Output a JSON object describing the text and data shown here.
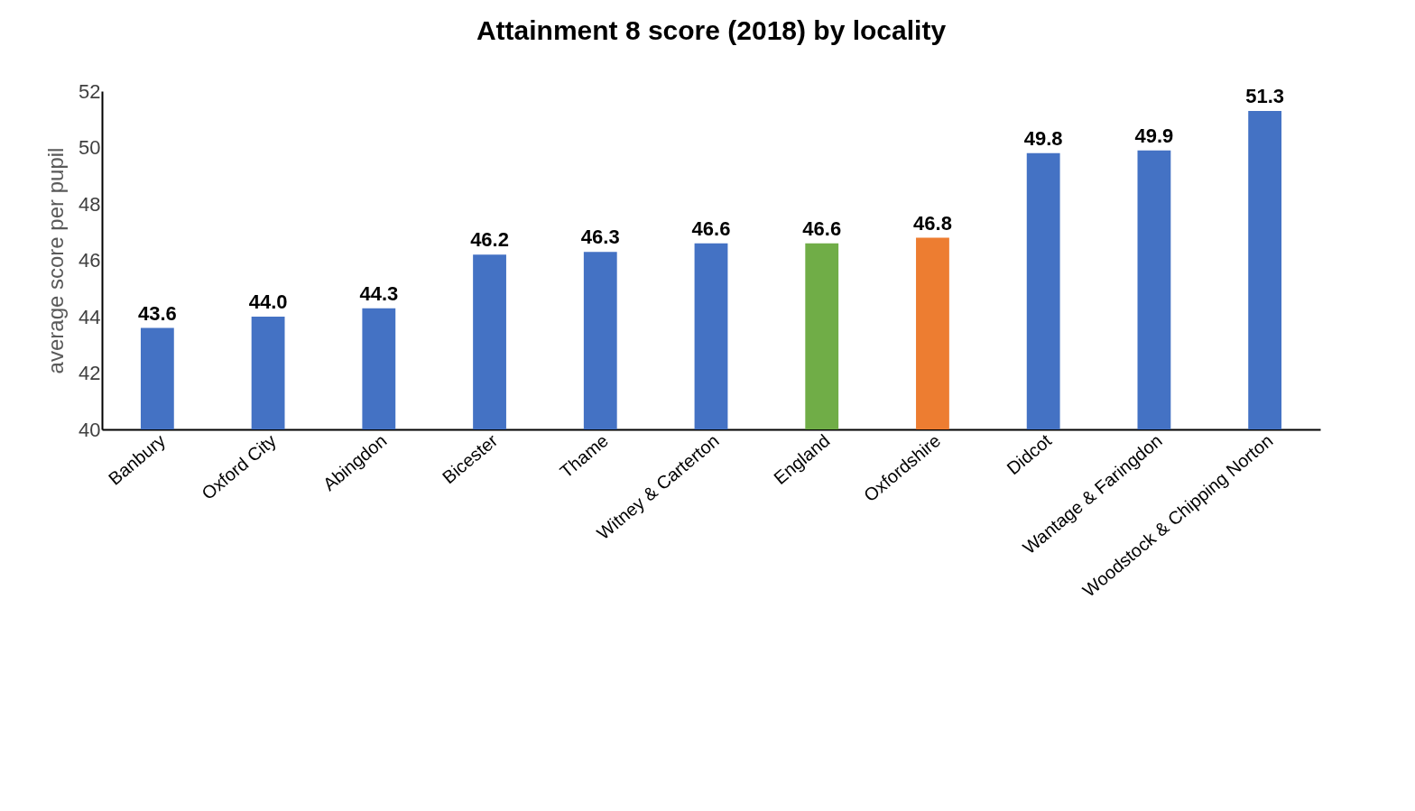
{
  "chart_data": {
    "type": "bar",
    "title": "Attainment 8 score (2018) by locality",
    "ylabel": "average score per pupil",
    "categories": [
      "Banbury",
      "Oxford City",
      "Abingdon",
      "Bicester",
      "Thame",
      "Witney & Carterton",
      "England",
      "Oxfordshire",
      "Didcot",
      "Wantage & Faringdon",
      "Woodstock & Chipping Norton"
    ],
    "values": [
      43.6,
      44.0,
      44.3,
      46.2,
      46.3,
      46.6,
      46.6,
      46.8,
      49.8,
      49.9,
      51.3
    ],
    "colors": [
      "#4472c4",
      "#4472c4",
      "#4472c4",
      "#4472c4",
      "#4472c4",
      "#4472c4",
      "#70ad47",
      "#ed7d31",
      "#4472c4",
      "#4472c4",
      "#4472c4"
    ],
    "value_labels": [
      "43.6",
      "44.0",
      "44.3",
      "46.2",
      "46.3",
      "46.6",
      "46.6",
      "46.8",
      "49.8",
      "49.9",
      "51.3"
    ],
    "ylim": [
      40,
      52
    ],
    "yticks": [
      40,
      42,
      44,
      46,
      48,
      50,
      52
    ],
    "grid": false
  }
}
